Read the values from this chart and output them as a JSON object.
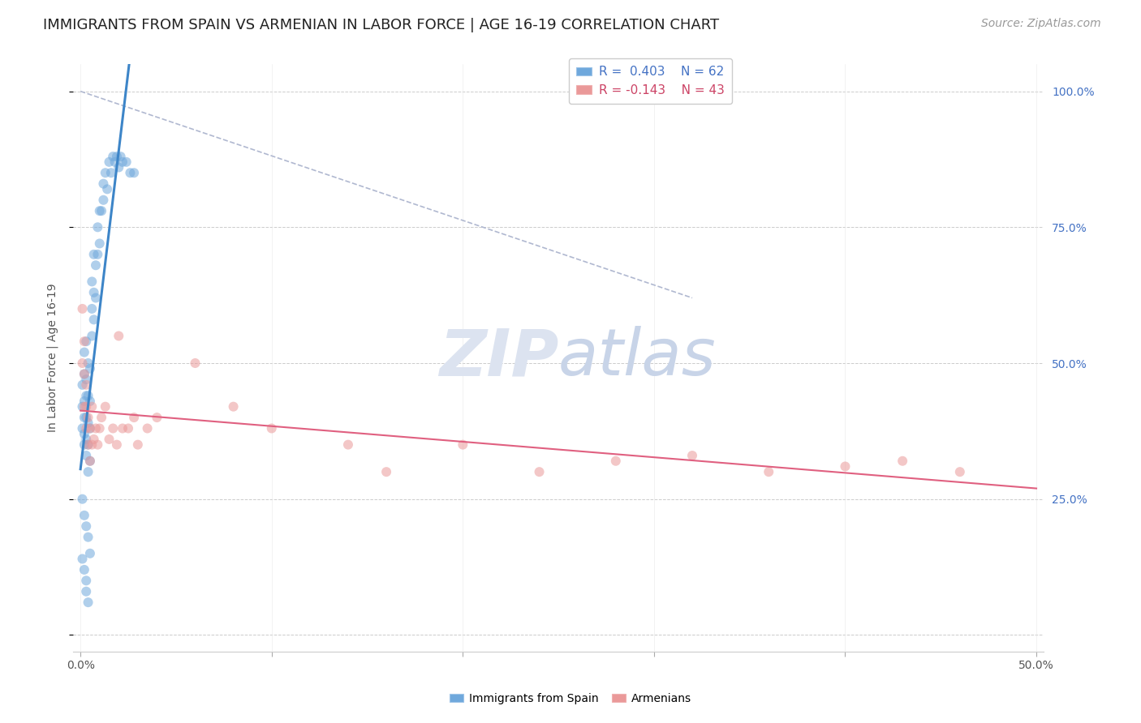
{
  "title": "IMMIGRANTS FROM SPAIN VS ARMENIAN IN LABOR FORCE | AGE 16-19 CORRELATION CHART",
  "source": "Source: ZipAtlas.com",
  "ylabel": "In Labor Force | Age 16-19",
  "spain_color": "#6fa8dc",
  "armenian_color": "#ea9999",
  "spain_line_color": "#3d85c8",
  "armenian_line_color": "#e06080",
  "dashed_line_color": "#b0b8d0",
  "watermark_color": "#dce3f0",
  "background_color": "#ffffff",
  "grid_color": "#cccccc",
  "spain_x": [
    0.001,
    0.001,
    0.001,
    0.002,
    0.002,
    0.002,
    0.002,
    0.002,
    0.002,
    0.003,
    0.003,
    0.003,
    0.003,
    0.003,
    0.003,
    0.004,
    0.004,
    0.004,
    0.004,
    0.004,
    0.005,
    0.005,
    0.005,
    0.005,
    0.006,
    0.006,
    0.006,
    0.007,
    0.007,
    0.007,
    0.008,
    0.008,
    0.009,
    0.009,
    0.01,
    0.01,
    0.011,
    0.012,
    0.012,
    0.013,
    0.014,
    0.015,
    0.016,
    0.017,
    0.018,
    0.019,
    0.02,
    0.021,
    0.022,
    0.024,
    0.026,
    0.028,
    0.001,
    0.002,
    0.003,
    0.004,
    0.005,
    0.001,
    0.002,
    0.003,
    0.003,
    0.004
  ],
  "spain_y": [
    0.38,
    0.42,
    0.46,
    0.35,
    0.37,
    0.4,
    0.43,
    0.48,
    0.52,
    0.33,
    0.36,
    0.4,
    0.44,
    0.47,
    0.54,
    0.3,
    0.35,
    0.39,
    0.44,
    0.5,
    0.32,
    0.38,
    0.43,
    0.49,
    0.55,
    0.6,
    0.65,
    0.58,
    0.63,
    0.7,
    0.62,
    0.68,
    0.7,
    0.75,
    0.72,
    0.78,
    0.78,
    0.8,
    0.83,
    0.85,
    0.82,
    0.87,
    0.85,
    0.88,
    0.87,
    0.88,
    0.86,
    0.88,
    0.87,
    0.87,
    0.85,
    0.85,
    0.25,
    0.22,
    0.2,
    0.18,
    0.15,
    0.14,
    0.12,
    0.1,
    0.08,
    0.06
  ],
  "armenian_x": [
    0.001,
    0.001,
    0.002,
    0.002,
    0.002,
    0.003,
    0.003,
    0.003,
    0.004,
    0.004,
    0.005,
    0.005,
    0.006,
    0.006,
    0.007,
    0.008,
    0.009,
    0.01,
    0.011,
    0.013,
    0.015,
    0.017,
    0.019,
    0.02,
    0.022,
    0.025,
    0.028,
    0.03,
    0.035,
    0.04,
    0.06,
    0.08,
    0.1,
    0.14,
    0.16,
    0.2,
    0.24,
    0.28,
    0.32,
    0.36,
    0.4,
    0.43,
    0.46
  ],
  "armenian_y": [
    0.6,
    0.5,
    0.42,
    0.48,
    0.54,
    0.38,
    0.42,
    0.46,
    0.35,
    0.4,
    0.32,
    0.38,
    0.35,
    0.42,
    0.36,
    0.38,
    0.35,
    0.38,
    0.4,
    0.42,
    0.36,
    0.38,
    0.35,
    0.55,
    0.38,
    0.38,
    0.4,
    0.35,
    0.38,
    0.4,
    0.5,
    0.42,
    0.38,
    0.35,
    0.3,
    0.35,
    0.3,
    0.32,
    0.33,
    0.3,
    0.31,
    0.32,
    0.3
  ],
  "xlim_min": 0.0,
  "xlim_max": 0.5,
  "ylim_min": 0.0,
  "ylim_max": 1.05,
  "ytick_vals": [
    0.0,
    0.25,
    0.5,
    0.75,
    1.0
  ],
  "ytick_labels": [
    "",
    "25.0%",
    "50.0%",
    "75.0%",
    "100.0%"
  ],
  "xtick_vals": [
    0.0,
    0.1,
    0.2,
    0.3,
    0.4,
    0.5
  ],
  "title_fontsize": 13,
  "axis_fontsize": 10,
  "tick_fontsize": 10,
  "source_fontsize": 10,
  "legend_fontsize": 11,
  "marker_size": 75,
  "marker_alpha": 0.55,
  "figwidth": 14.06,
  "figheight": 8.92
}
